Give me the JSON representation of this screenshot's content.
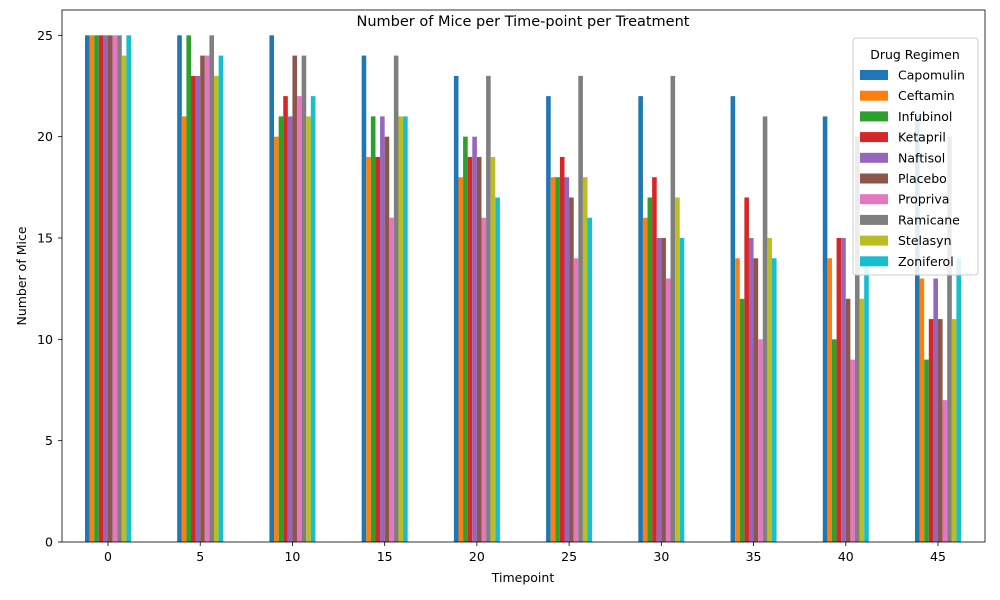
{
  "chart_data": {
    "type": "bar",
    "title": "Number of Mice per Time-point per Treatment",
    "xlabel": "Timepoint",
    "ylabel": "Number of Mice",
    "categories": [
      "0",
      "5",
      "10",
      "15",
      "20",
      "25",
      "30",
      "35",
      "40",
      "45"
    ],
    "ylim": [
      0,
      26.25
    ],
    "yticks": [
      0,
      5,
      10,
      15,
      20,
      25
    ],
    "legend_title": "Drug Regimen",
    "legend_position": "top-right",
    "grid": false,
    "series": [
      {
        "name": "Capomulin",
        "color": "#1f77b4",
        "values": [
          25,
          25,
          25,
          24,
          23,
          22,
          22,
          22,
          21,
          21
        ]
      },
      {
        "name": "Ceftamin",
        "color": "#ff7f0e",
        "values": [
          25,
          21,
          20,
          19,
          18,
          18,
          16,
          14,
          14,
          13
        ]
      },
      {
        "name": "Infubinol",
        "color": "#2ca02c",
        "values": [
          25,
          25,
          21,
          21,
          20,
          18,
          17,
          12,
          10,
          9
        ]
      },
      {
        "name": "Ketapril",
        "color": "#d62728",
        "values": [
          25,
          23,
          22,
          19,
          19,
          19,
          18,
          17,
          15,
          11
        ]
      },
      {
        "name": "Naftisol",
        "color": "#9467bd",
        "values": [
          25,
          23,
          21,
          21,
          20,
          18,
          15,
          15,
          15,
          13
        ]
      },
      {
        "name": "Placebo",
        "color": "#8c564b",
        "values": [
          25,
          24,
          24,
          20,
          19,
          17,
          15,
          14,
          12,
          11
        ]
      },
      {
        "name": "Propriva",
        "color": "#e377c2",
        "values": [
          25,
          24,
          22,
          16,
          16,
          14,
          13,
          10,
          9,
          7
        ]
      },
      {
        "name": "Ramicane",
        "color": "#7f7f7f",
        "values": [
          25,
          25,
          24,
          24,
          23,
          23,
          23,
          21,
          20,
          20
        ]
      },
      {
        "name": "Stelasyn",
        "color": "#bcbd22",
        "values": [
          24,
          23,
          21,
          21,
          19,
          18,
          17,
          15,
          12,
          11
        ]
      },
      {
        "name": "Zoniferol",
        "color": "#17becf",
        "values": [
          25,
          24,
          22,
          21,
          17,
          16,
          15,
          14,
          14,
          14
        ]
      }
    ]
  }
}
